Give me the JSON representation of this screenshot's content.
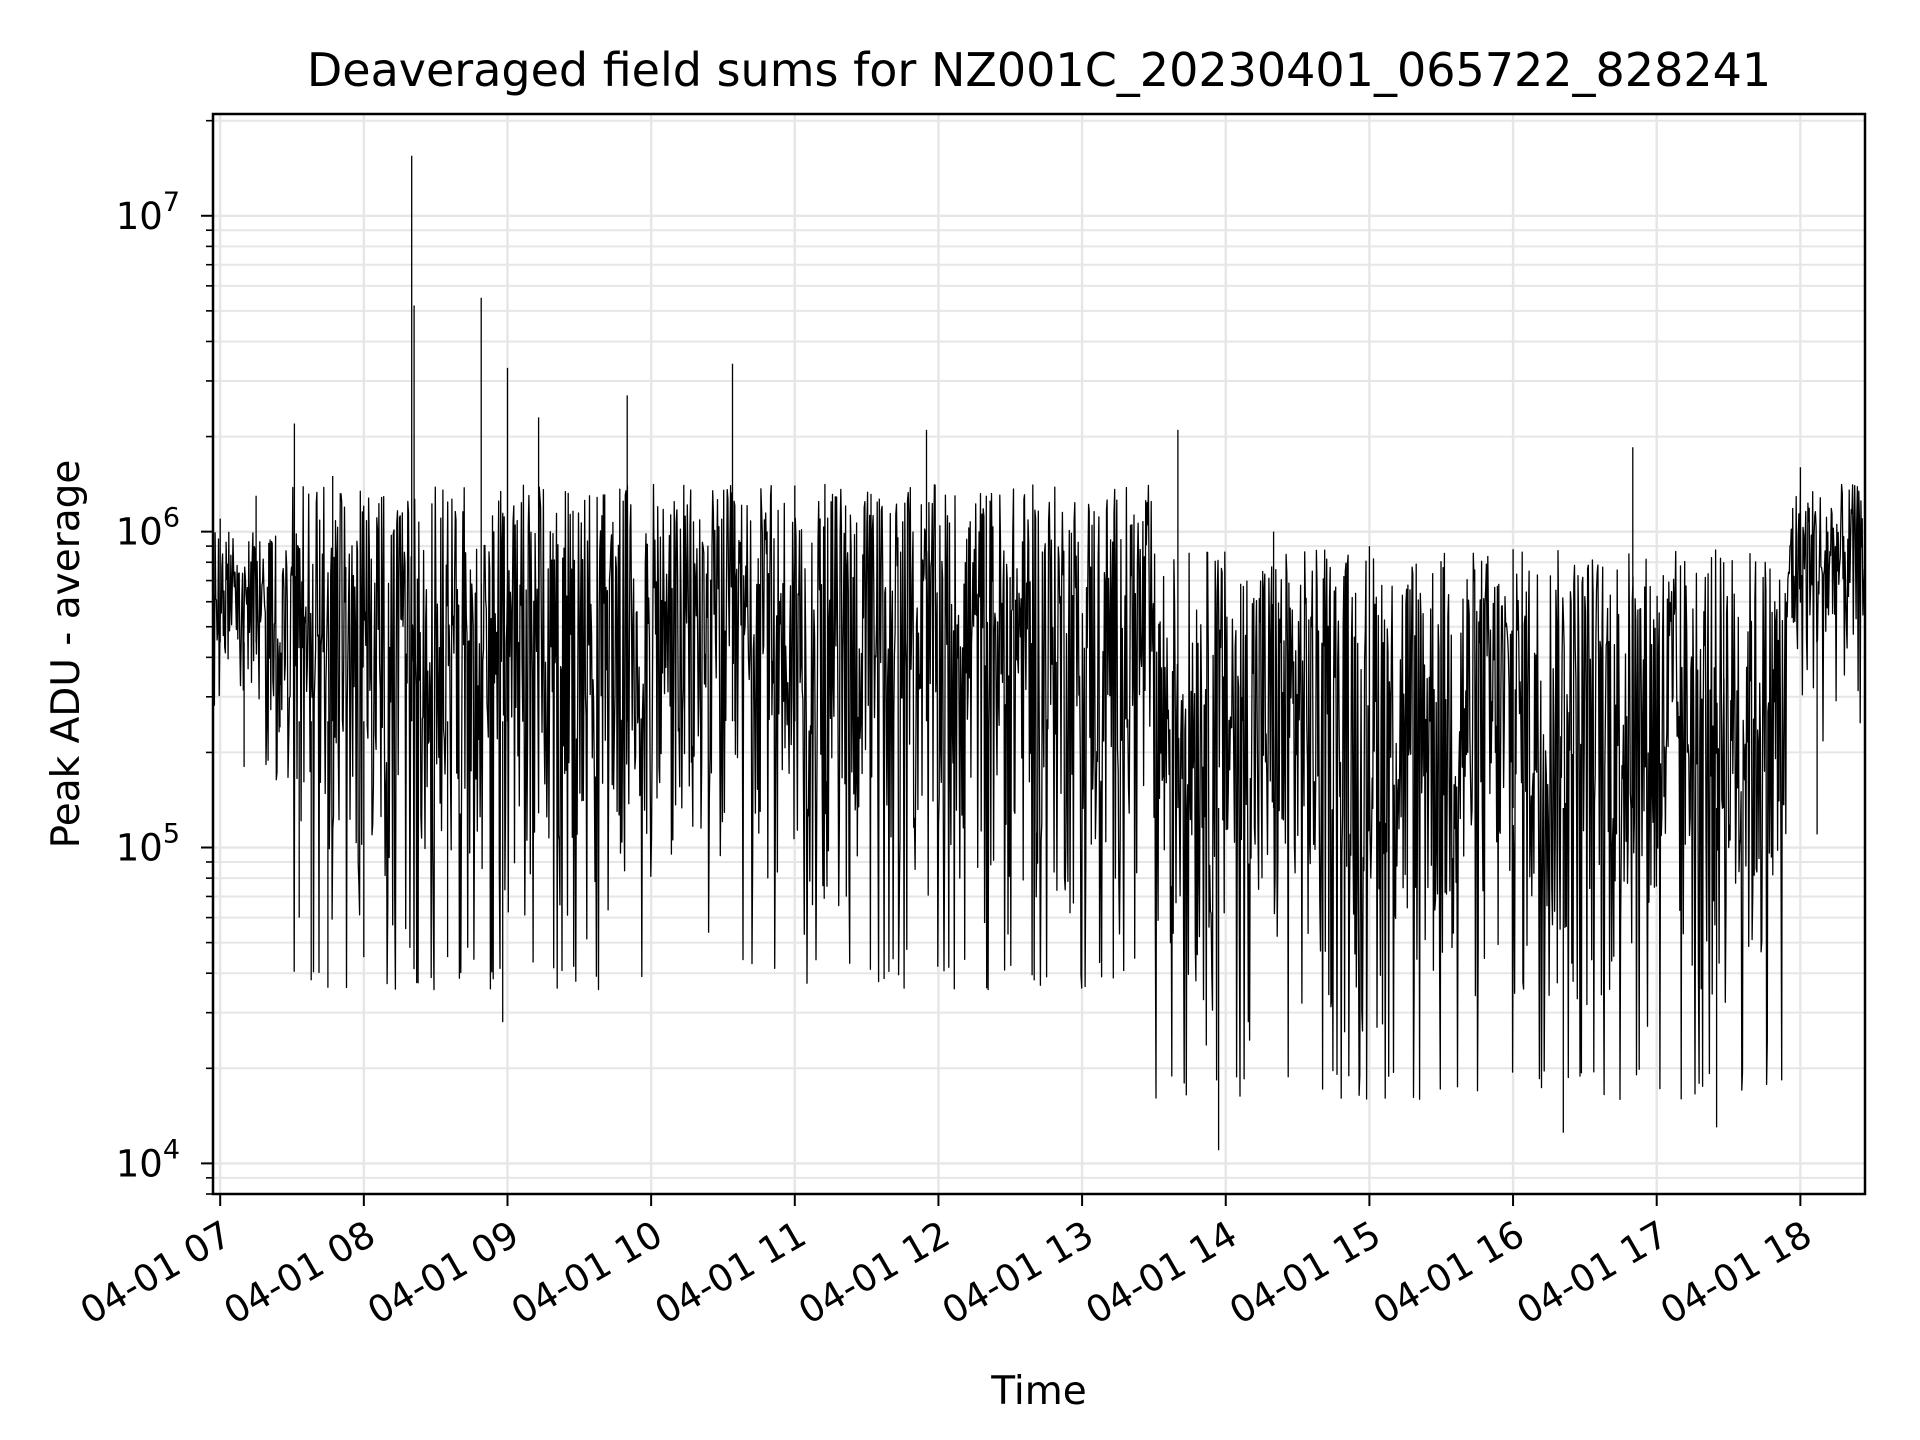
{
  "chart_data": {
    "type": "line",
    "title": "Deaveraged field sums for NZ001C_20230401_065722_828241",
    "xlabel": "Time",
    "ylabel": "Peak ADU - average",
    "yscale": "log",
    "ylim": [
      8000,
      21000000
    ],
    "xlim": [
      "04-01 06:57",
      "04-01 18:27"
    ],
    "grid": true,
    "line_color": "#000000",
    "grid_color": "#e6e6e6",
    "x_ticks": [
      "04-01 07",
      "04-01 08",
      "04-01 09",
      "04-01 10",
      "04-01 11",
      "04-01 12",
      "04-01 13",
      "04-01 14",
      "04-01 15",
      "04-01 16",
      "04-01 17",
      "04-01 18"
    ],
    "y_ticks": [
      {
        "base": "10",
        "exp": "4",
        "value": 10000
      },
      {
        "base": "10",
        "exp": "5",
        "value": 100000
      },
      {
        "base": "10",
        "exp": "6",
        "value": 1000000
      },
      {
        "base": "10",
        "exp": "7",
        "value": 10000000
      }
    ],
    "series": [
      {
        "x": [
          "04-01 06:57",
          "04-01 07:00",
          "04-01 07:10",
          "04-01 07:15",
          "04-01 07:25",
          "04-01 07:31",
          "04-01 07:33",
          "04-01 07:38",
          "04-01 07:45",
          "04-01 07:47",
          "04-01 08:00",
          "04-01 08:20",
          "04-01 08:21",
          "04-01 08:35",
          "04-01 08:49",
          "04-01 08:58",
          "04-01 09:00",
          "04-01 09:13",
          "04-01 09:50",
          "04-01 10:34",
          "04-01 10:35",
          "04-01 11:00",
          "04-01 11:55",
          "04-01 12:20",
          "04-01 13:40",
          "04-01 13:57",
          "04-01 14:20",
          "04-01 15:00",
          "04-01 16:00",
          "04-01 16:21",
          "04-01 16:50",
          "04-01 17:25",
          "04-01 17:28",
          "04-01 18:00",
          "04-01 18:07",
          "04-01 18:27"
        ],
        "y": [
          580000,
          1100000,
          180000,
          1300000,
          240000,
          2200000,
          60000,
          38000,
          36000,
          1500000,
          45000,
          15500000,
          5200000,
          45000,
          5500000,
          28000,
          3300000,
          2300000,
          2700000,
          3400000,
          1000000,
          1400000,
          2100000,
          1300000,
          2100000,
          11000,
          1000000,
          900000,
          880000,
          12500,
          1850000,
          13000,
          800000,
          1600000,
          110000,
          360000
        ],
        "points_note_free": true
      }
    ]
  }
}
